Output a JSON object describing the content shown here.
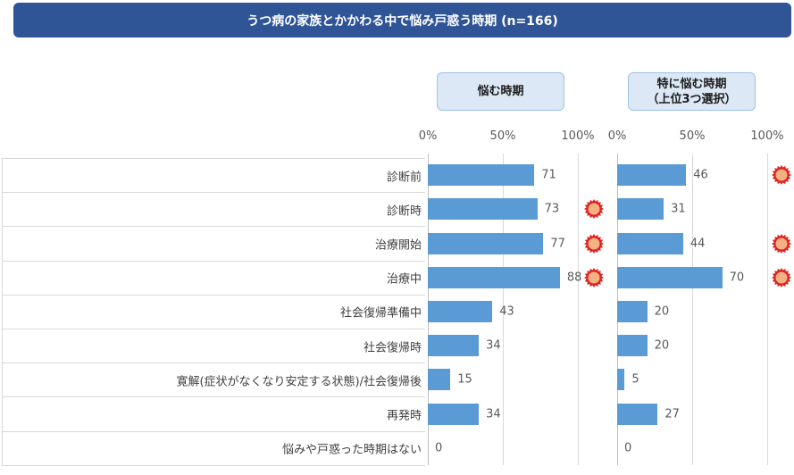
{
  "header": {
    "title": "うつ病の家族とかかわる中で悩み戸惑う時期 (n=166)"
  },
  "panels": [
    {
      "title": "悩む時期"
    },
    {
      "title_line1": "特に悩む時期",
      "title_line2": "（上位3つ選択）"
    }
  ],
  "axis": {
    "ticks": [
      "0%",
      "50%",
      "100%"
    ]
  },
  "chart_data": [
    {
      "type": "bar",
      "orientation": "horizontal",
      "title": "悩む時期",
      "categories": [
        "診断前",
        "診断時",
        "治療開始",
        "治療中",
        "社会復帰準備中",
        "社会復帰時",
        "寛解(症状がなくなり安定する状態)/社会復帰後",
        "再発時",
        "悩みや戸惑った時期はない"
      ],
      "values": [
        71,
        73,
        77,
        88,
        43,
        34,
        15,
        34,
        0
      ],
      "highlighted": [
        false,
        true,
        true,
        true,
        false,
        false,
        false,
        false,
        false
      ],
      "xlim": [
        0,
        100
      ],
      "tick_labels": [
        "0%",
        "50%",
        "100%"
      ],
      "highlight_color": "#e02020"
    },
    {
      "type": "bar",
      "orientation": "horizontal",
      "title": "特に悩む時期（上位3つ選択）",
      "categories": [
        "診断前",
        "診断時",
        "治療開始",
        "治療中",
        "社会復帰準備中",
        "社会復帰時",
        "寛解(症状がなくなり安定する状態)/社会復帰後",
        "再発時",
        "悩みや戸惑った時期はない"
      ],
      "values": [
        46,
        31,
        44,
        70,
        20,
        20,
        5,
        27,
        0
      ],
      "highlighted": [
        true,
        false,
        true,
        true,
        false,
        false,
        false,
        false,
        false
      ],
      "xlim": [
        0,
        100
      ],
      "tick_labels": [
        "0%",
        "50%",
        "100%"
      ],
      "highlight_color": "#e02020"
    }
  ],
  "colors": {
    "bar": "#5b9bd5",
    "header_bg": "#2f5597",
    "panel_bg": "#dce8f5",
    "marker": "#e02020"
  }
}
